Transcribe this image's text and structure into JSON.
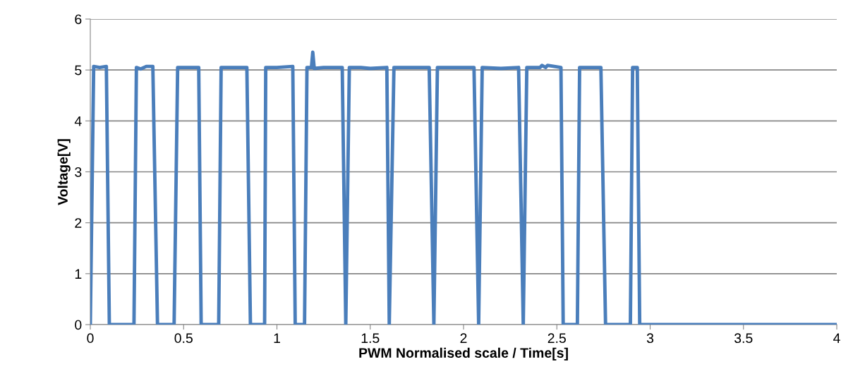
{
  "chart_data": {
    "type": "line",
    "xlabel": "PWM Normalised scale / Time[s]",
    "ylabel": "Voltage[V]",
    "xlim": [
      0,
      4
    ],
    "ylim": [
      0,
      6
    ],
    "xticks": [
      0,
      0.5,
      1,
      1.5,
      2,
      2.5,
      3,
      3.5,
      4
    ],
    "yticks": [
      0,
      1,
      2,
      3,
      4,
      5,
      6
    ],
    "grid": "y",
    "marker": "none",
    "line_style": "solid",
    "series": [
      {
        "color": "#4a7ebb",
        "x": [
          0.0,
          0.018,
          0.05,
          0.086,
          0.102,
          0.234,
          0.247,
          0.27,
          0.3,
          0.335,
          0.36,
          0.449,
          0.468,
          0.52,
          0.581,
          0.594,
          0.688,
          0.701,
          0.77,
          0.839,
          0.858,
          0.934,
          0.94,
          1.0,
          1.085,
          1.098,
          1.148,
          1.161,
          1.185,
          1.192,
          1.2,
          1.25,
          1.35,
          1.369,
          1.388,
          1.45,
          1.5,
          1.589,
          1.602,
          1.627,
          1.7,
          1.816,
          1.841,
          1.86,
          1.95,
          2.056,
          2.081,
          2.1,
          2.2,
          2.295,
          2.32,
          2.339,
          2.41,
          2.42,
          2.44,
          2.45,
          2.522,
          2.534,
          2.61,
          2.622,
          2.7,
          2.736,
          2.761,
          2.894,
          2.906,
          2.931,
          2.944,
          3.0,
          3.5,
          4.0
        ],
        "values": [
          0.0,
          5.07,
          5.05,
          5.07,
          0.0,
          0.0,
          5.05,
          5.02,
          5.07,
          5.07,
          0.0,
          0.0,
          5.05,
          5.05,
          5.05,
          0.0,
          0.0,
          5.05,
          5.05,
          5.05,
          0.0,
          0.0,
          5.05,
          5.05,
          5.07,
          0.0,
          0.0,
          5.05,
          5.05,
          5.35,
          5.03,
          5.05,
          5.05,
          0.0,
          5.05,
          5.05,
          5.03,
          5.05,
          0.0,
          5.05,
          5.05,
          5.05,
          0.0,
          5.05,
          5.05,
          5.05,
          0.0,
          5.05,
          5.03,
          5.05,
          0.0,
          5.05,
          5.05,
          5.09,
          5.05,
          5.09,
          5.05,
          0.0,
          0.0,
          5.05,
          5.05,
          5.05,
          0.0,
          0.0,
          5.05,
          5.05,
          0.0,
          0.0,
          0.0,
          0.0
        ]
      }
    ]
  }
}
